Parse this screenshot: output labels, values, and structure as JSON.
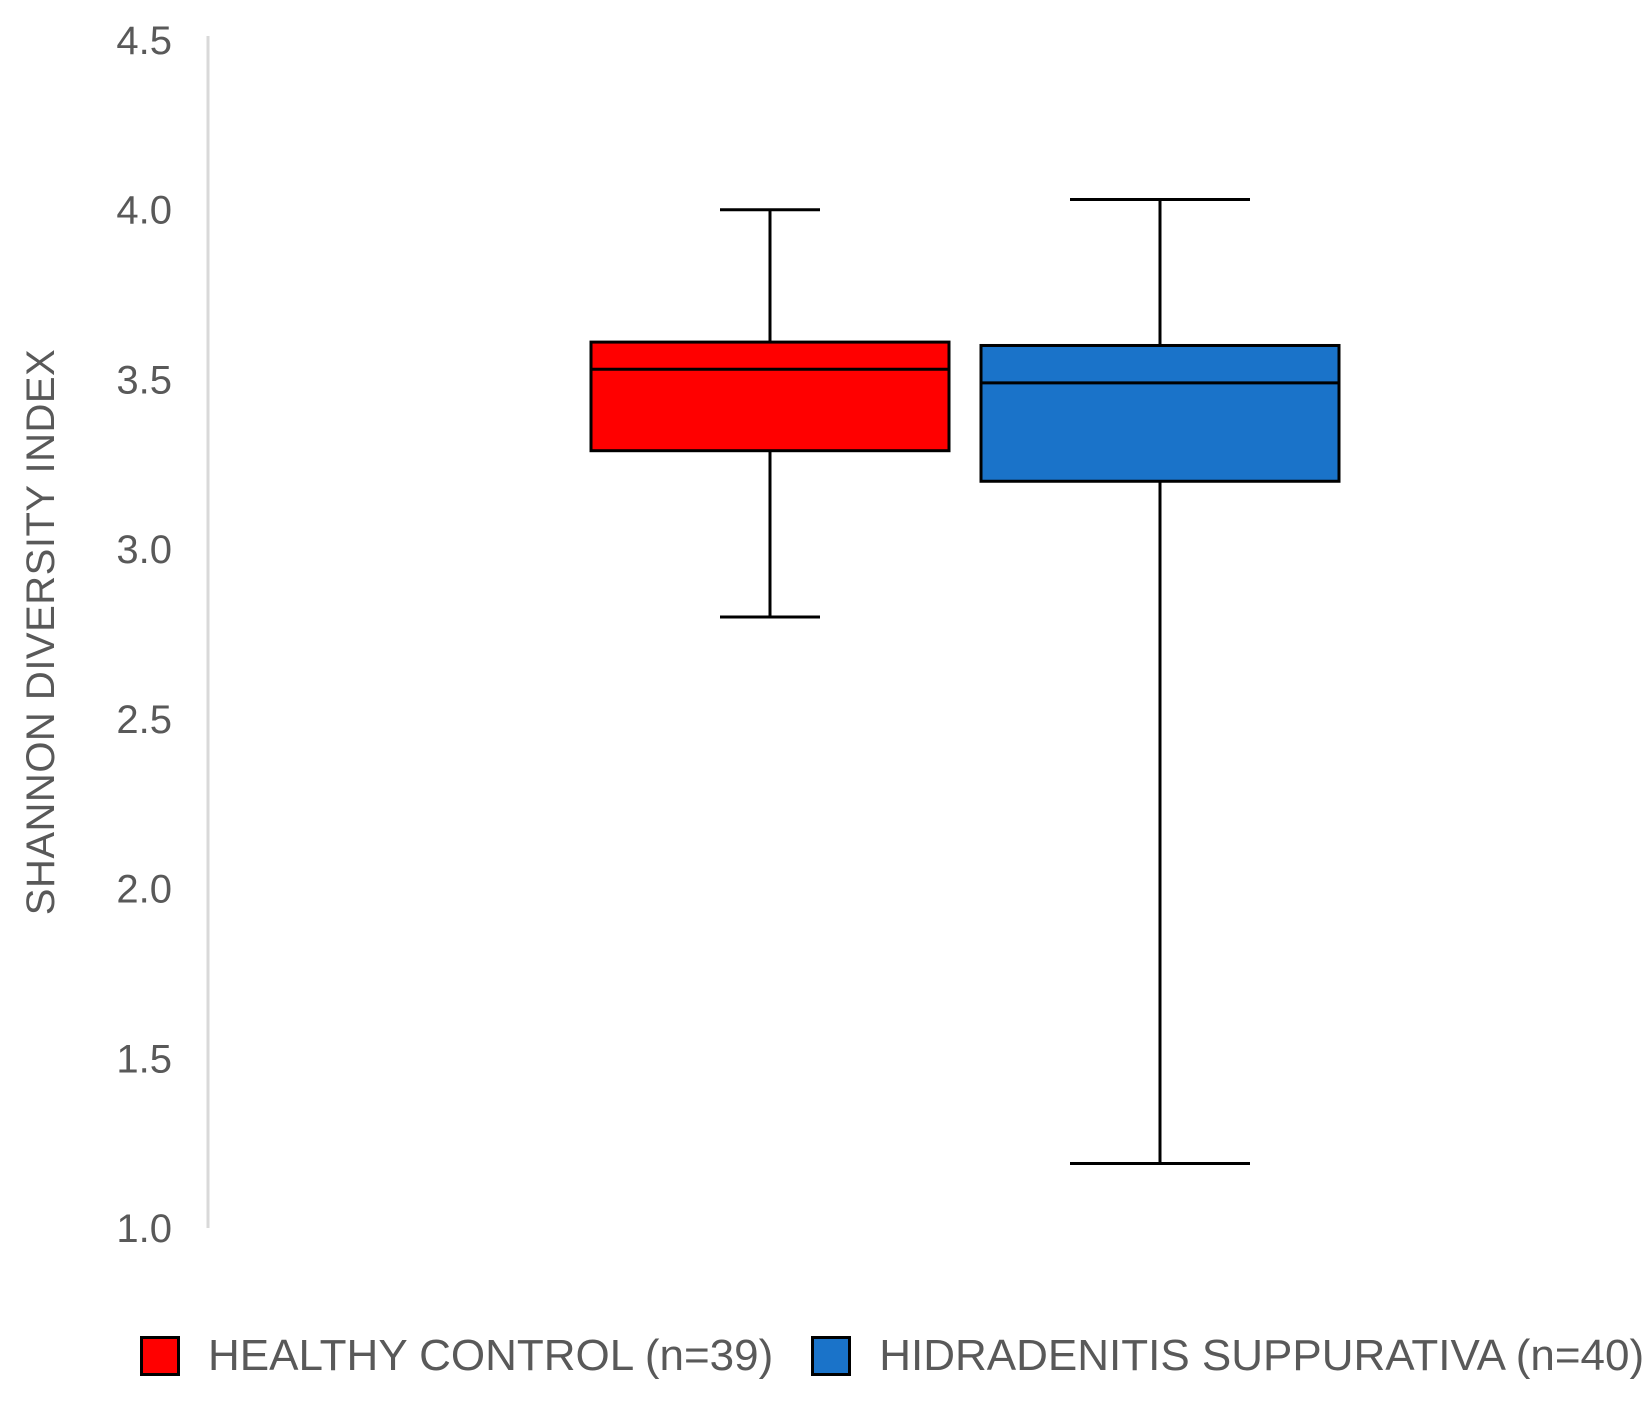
{
  "chart_data": {
    "type": "box",
    "title": "",
    "xlabel": "",
    "ylabel": "SHANNON DIVERSITY INDEX",
    "ylim": [
      1.0,
      4.5
    ],
    "yticks": [
      "1.0",
      "1.5",
      "2.0",
      "2.5",
      "3.0",
      "3.5",
      "4.0",
      "4.5"
    ],
    "grid": false,
    "legend_position": "bottom",
    "series": [
      {
        "name": "HEALTHY CONTROL (n=39)",
        "color": "#ff0000",
        "min": 2.8,
        "q1": 3.29,
        "median": 3.53,
        "q3": 3.61,
        "max": 4.0
      },
      {
        "name": "HIDRADENITIS SUPPURATIVA (n=40)",
        "color": "#1a73c9",
        "min": 1.19,
        "q1": 3.2,
        "median": 3.49,
        "q3": 3.6,
        "max": 4.03
      }
    ]
  }
}
